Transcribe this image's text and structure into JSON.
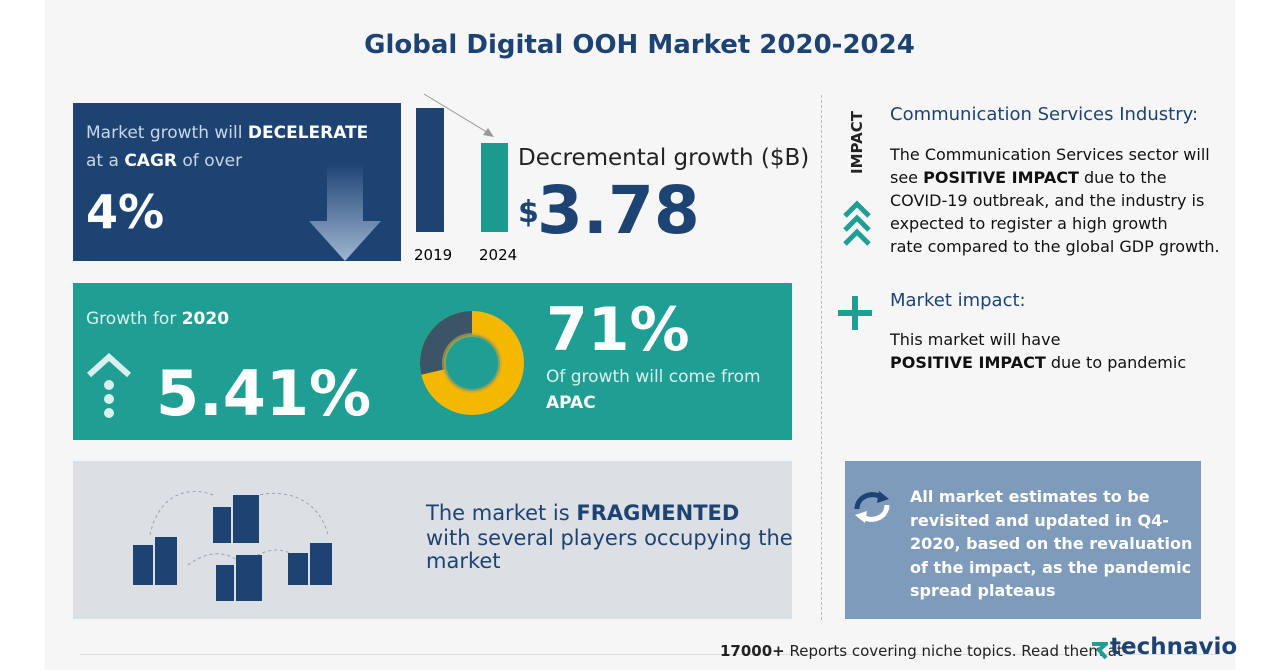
{
  "title": "Global Digital OOH Market 2020-2024",
  "cagr_box": {
    "line1": "Market growth will",
    "trend": "DECELERATE",
    "line2_a": "at a",
    "cagr": "CAGR",
    "line2_b": "of over",
    "value": "4%"
  },
  "growth_chart": {
    "years": [
      "2019",
      "2024"
    ],
    "label": "Decremental growth ($B)",
    "currency": "$",
    "value": "3.78"
  },
  "growth_2020": {
    "label": "Growth for",
    "year": "2020",
    "value": "5.41%"
  },
  "region": {
    "value": "71%",
    "label": "Of growth will come from",
    "name": "APAC"
  },
  "fragmentation": {
    "text_a": "The market is",
    "highlight": "FRAGMENTED",
    "line2": "with several players occupying the",
    "line3": "market"
  },
  "impact": {
    "tag": "IMPACT",
    "heading": "Communication Services Industry:",
    "line1": "The Communication Services sector will",
    "line2_a": "see",
    "line2_bold": "POSITIVE IMPACT",
    "line2_b": "due to the",
    "line3": "COVID-19 outbreak, and the industry is",
    "line4": "expected to register a high growth",
    "line5": "rate compared to the global GDP growth."
  },
  "market_impact": {
    "heading": "Market impact:",
    "line1": "This market will have",
    "bold": "POSITIVE IMPACT",
    "line2_b": "due to pandemic"
  },
  "note": {
    "lines": [
      "All market estimates to be",
      "revisited and updated in Q4-",
      "2020, based on the revaluation",
      "of the impact, as the pandemic",
      "spread plateaus"
    ]
  },
  "footer": {
    "count": "17000+",
    "text": "Reports covering niche topics. Read them at",
    "brand": "technavio"
  }
}
